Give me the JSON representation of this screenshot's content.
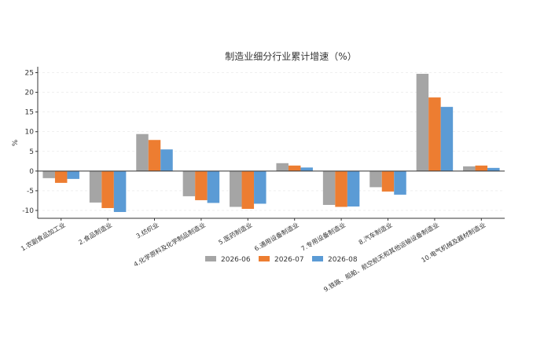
{
  "chart_data": {
    "type": "bar",
    "title": "制造业细分行业累计增速（%）",
    "ylabel": "%",
    "xlabel": "",
    "ylim": [
      -12,
      26.5
    ],
    "yticks": [
      -10,
      -5,
      0,
      5,
      10,
      15,
      20,
      25
    ],
    "grid": true,
    "legend": "bottom",
    "categories": [
      "1.农副食品加工业",
      "2.食品制造业",
      "3.纺织业",
      "4.化学原料及化学制品制造业",
      "5.医药制造业",
      "6.通用设备制造业",
      "7.专用设备制造业",
      "8.汽车制造业",
      "9.铁路、船舶、航空航天和其他运输设备制造业",
      "10.电气机械及器材制造业"
    ],
    "series": [
      {
        "name": "2026-06",
        "color": "#a5a5a5",
        "values": [
          -1.8,
          -8.0,
          9.4,
          -6.4,
          -9.1,
          2.0,
          -8.6,
          -4.1,
          24.7,
          1.2
        ]
      },
      {
        "name": "2026-07",
        "color": "#ed7d31",
        "values": [
          -3.0,
          -9.4,
          7.9,
          -7.4,
          -9.6,
          1.4,
          -9.1,
          -5.2,
          18.7,
          1.4
        ]
      },
      {
        "name": "2026-08",
        "color": "#5b9bd5",
        "values": [
          -2.0,
          -10.4,
          5.5,
          -8.1,
          -8.3,
          0.9,
          -9.0,
          -6.0,
          16.3,
          0.8
        ]
      }
    ]
  }
}
